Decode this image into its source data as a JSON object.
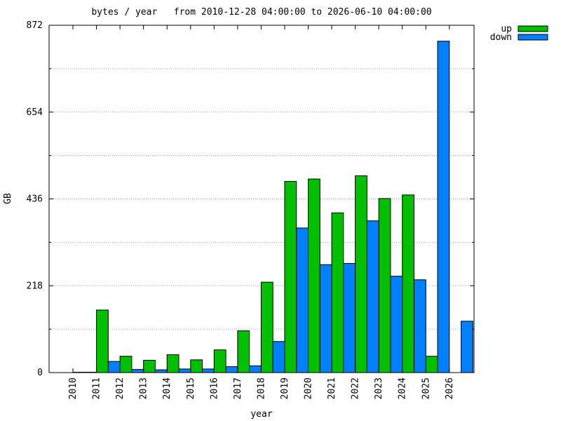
{
  "chart_data": {
    "type": "bar",
    "title": "bytes / year   from 2010-12-28 04:00:00 to 2026-06-10 04:00:00",
    "xlabel": "year",
    "ylabel": "GB",
    "categories": [
      "2010",
      "2011",
      "2012",
      "2013",
      "2014",
      "2015",
      "2016",
      "2017",
      "2018",
      "2019",
      "2020",
      "2021",
      "2022",
      "2023",
      "2024",
      "2025",
      "2026"
    ],
    "ylim": [
      0,
      872
    ],
    "yticks": [
      0,
      218,
      436,
      654,
      872
    ],
    "minor_yticks": [
      109,
      327,
      545,
      763
    ],
    "grid": true,
    "legend_position": "top-right",
    "series": [
      {
        "name": "up",
        "color": "#00c000",
        "values": [
          1,
          157,
          41,
          31,
          45,
          32,
          57,
          105,
          227,
          480,
          486,
          401,
          494,
          437,
          446,
          41,
          0
        ]
      },
      {
        "name": "down",
        "color": "#0080ff",
        "values": [
          1,
          28,
          8,
          7,
          9,
          9,
          15,
          17,
          78,
          363,
          271,
          274,
          381,
          242,
          233,
          832,
          129
        ]
      }
    ]
  }
}
